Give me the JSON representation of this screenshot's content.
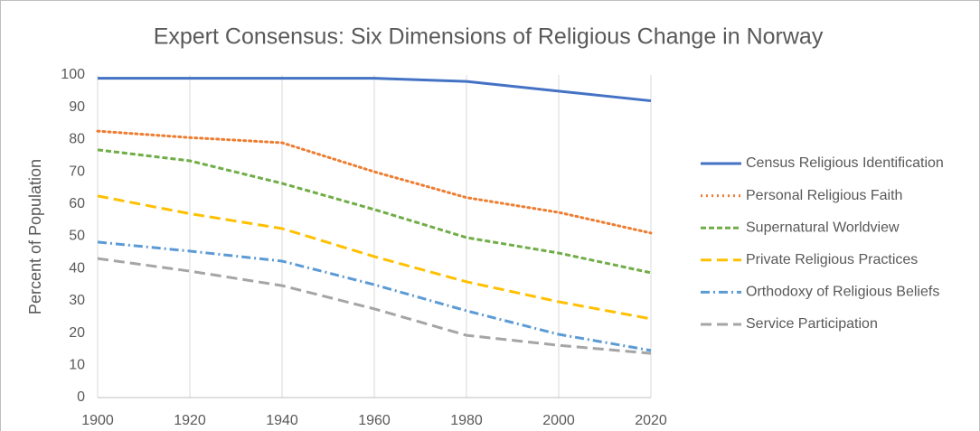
{
  "chart_data": {
    "type": "line",
    "title": "Expert Consensus: Six Dimensions of Religious Change in Norway",
    "y_label": "Percent of Population",
    "x": [
      1900,
      1920,
      1940,
      1960,
      1980,
      2000,
      2020
    ],
    "xlim": [
      1900,
      2020
    ],
    "xticks": [
      1900,
      1920,
      1940,
      1960,
      1980,
      2000,
      2020
    ],
    "ylim": [
      0,
      100
    ],
    "yticks": [
      0,
      10,
      20,
      30,
      40,
      50,
      60,
      70,
      80,
      90,
      100
    ],
    "grid": true,
    "legend": "right",
    "series": [
      {
        "name": "Census Religious Identification",
        "color": "#4472c4",
        "dash": "solid",
        "values": [
          99,
          99,
          99,
          99,
          98,
          95,
          92
        ]
      },
      {
        "name": "Personal Religious Faith",
        "color": "#ed7d31",
        "dash": "dotted",
        "values": [
          82.6,
          80.6,
          79,
          70,
          62,
          57.4,
          51
        ]
      },
      {
        "name": "Supernatural Worldview",
        "color": "#70ad47",
        "dash": "dashed",
        "values": [
          76.8,
          73.4,
          66.4,
          58.3,
          49.6,
          44.8,
          38.7
        ]
      },
      {
        "name": "Private Religious Practices",
        "color": "#ffc000",
        "dash": "longdash",
        "values": [
          62.5,
          57,
          52.4,
          43.7,
          35.9,
          29.7,
          24.4
        ]
      },
      {
        "name": "Orthodoxy of Religious Beliefs",
        "color": "#5b9bd5",
        "dash": "dashdot",
        "values": [
          48.2,
          45.4,
          42.3,
          35,
          26.9,
          19.6,
          14.6
        ]
      },
      {
        "name": "Service Participation",
        "color": "#a5a5a5",
        "dash": "longdash",
        "values": [
          43.1,
          39.2,
          34.7,
          27.5,
          19.3,
          16.2,
          13.7
        ]
      }
    ]
  }
}
